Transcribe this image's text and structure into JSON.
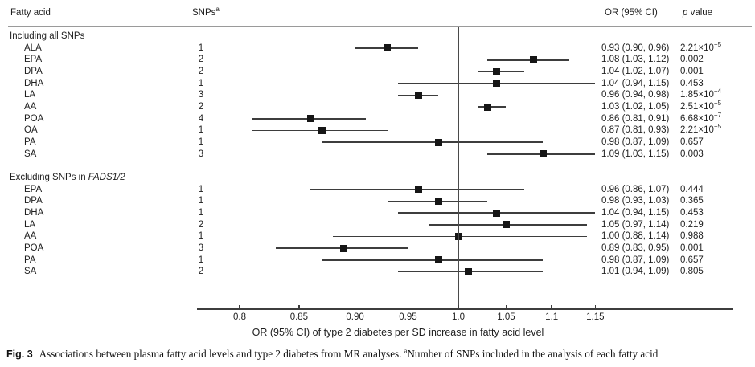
{
  "header": {
    "fatty_acid": "Fatty acid",
    "snps": "SNPs",
    "snps_sup": "a",
    "or_ci": "OR (95% CI)",
    "p_italic": "p",
    "p_rest": " value"
  },
  "chart_data": {
    "type": "forest",
    "x_scale": "log",
    "x_range": [
      0.8,
      1.15
    ],
    "x_ticks": [
      "0.8",
      "0.85",
      "0.90",
      "0.95",
      "1.0",
      "1.05",
      "1.1",
      "1.15"
    ],
    "ref_line": 1.0,
    "xlabel": "OR (95% CI) of type 2 diabetes per SD increase in fatty acid level",
    "grid": false,
    "legend": "none",
    "groups": [
      {
        "label": "Including all SNPs",
        "label_italic": "",
        "rows": [
          {
            "name": "ALA",
            "snps": "1",
            "or": 0.93,
            "lo": 0.9,
            "hi": 0.96,
            "or_text": "0.93 (0.90, 0.96)",
            "p": "2.21×10^−5"
          },
          {
            "name": "EPA",
            "snps": "2",
            "or": 1.08,
            "lo": 1.03,
            "hi": 1.12,
            "or_text": "1.08 (1.03, 1.12)",
            "p": "0.002"
          },
          {
            "name": "DPA",
            "snps": "2",
            "or": 1.04,
            "lo": 1.02,
            "hi": 1.07,
            "or_text": "1.04 (1.02, 1.07)",
            "p": "0.001"
          },
          {
            "name": "DHA",
            "snps": "1",
            "or": 1.04,
            "lo": 0.94,
            "hi": 1.15,
            "or_text": "1.04 (0.94, 1.15)",
            "p": "0.453"
          },
          {
            "name": "LA",
            "snps": "3",
            "or": 0.96,
            "lo": 0.94,
            "hi": 0.98,
            "or_text": "0.96 (0.94, 0.98)",
            "p": "1.85×10^−4"
          },
          {
            "name": "AA",
            "snps": "2",
            "or": 1.03,
            "lo": 1.02,
            "hi": 1.05,
            "or_text": "1.03 (1.02, 1.05)",
            "p": "2.51×10^−5"
          },
          {
            "name": "POA",
            "snps": "4",
            "or": 0.86,
            "lo": 0.81,
            "hi": 0.91,
            "or_text": "0.86 (0.81, 0.91)",
            "p": "6.68×10^−7"
          },
          {
            "name": "OA",
            "snps": "1",
            "or": 0.87,
            "lo": 0.81,
            "hi": 0.93,
            "or_text": "0.87 (0.81, 0.93)",
            "p": "2.21×10^−5"
          },
          {
            "name": "PA",
            "snps": "1",
            "or": 0.98,
            "lo": 0.87,
            "hi": 1.09,
            "or_text": "0.98 (0.87, 1.09)",
            "p": "0.657"
          },
          {
            "name": "SA",
            "snps": "3",
            "or": 1.09,
            "lo": 1.03,
            "hi": 1.15,
            "or_text": "1.09 (1.03, 1.15)",
            "p": "0.003"
          }
        ]
      },
      {
        "label": "Excluding SNPs in ",
        "label_italic": "FADS1/2",
        "rows": [
          {
            "name": "EPA",
            "snps": "1",
            "or": 0.96,
            "lo": 0.86,
            "hi": 1.07,
            "or_text": "0.96 (0.86, 1.07)",
            "p": "0.444"
          },
          {
            "name": "DPA",
            "snps": "1",
            "or": 0.98,
            "lo": 0.93,
            "hi": 1.03,
            "or_text": "0.98 (0.93, 1.03)",
            "p": "0.365"
          },
          {
            "name": "DHA",
            "snps": "1",
            "or": 1.04,
            "lo": 0.94,
            "hi": 1.15,
            "or_text": "1.04 (0.94, 1.15)",
            "p": "0.453"
          },
          {
            "name": "LA",
            "snps": "2",
            "or": 1.05,
            "lo": 0.97,
            "hi": 1.14,
            "or_text": "1.05 (0.97, 1.14)",
            "p": "0.219"
          },
          {
            "name": "AA",
            "snps": "1",
            "or": 1.0,
            "lo": 0.88,
            "hi": 1.14,
            "or_text": "1.00 (0.88, 1.14)",
            "p": "0.988"
          },
          {
            "name": "POA",
            "snps": "3",
            "or": 0.89,
            "lo": 0.83,
            "hi": 0.95,
            "or_text": "0.89 (0.83, 0.95)",
            "p": "0.001"
          },
          {
            "name": "PA",
            "snps": "1",
            "or": 0.98,
            "lo": 0.87,
            "hi": 1.09,
            "or_text": "0.98 (0.87, 1.09)",
            "p": "0.657"
          },
          {
            "name": "SA",
            "snps": "2",
            "or": 1.01,
            "lo": 0.94,
            "hi": 1.09,
            "or_text": "1.01 (0.94, 1.09)",
            "p": "0.805"
          }
        ]
      }
    ]
  },
  "caption": {
    "fig_label": "Fig. 3",
    "text_before_sup": "Associations between plasma fatty acid levels and type 2 diabetes from MR analyses. ",
    "sup": "a",
    "text_after_sup": "Number of SNPs included in the analysis of each fatty acid"
  }
}
